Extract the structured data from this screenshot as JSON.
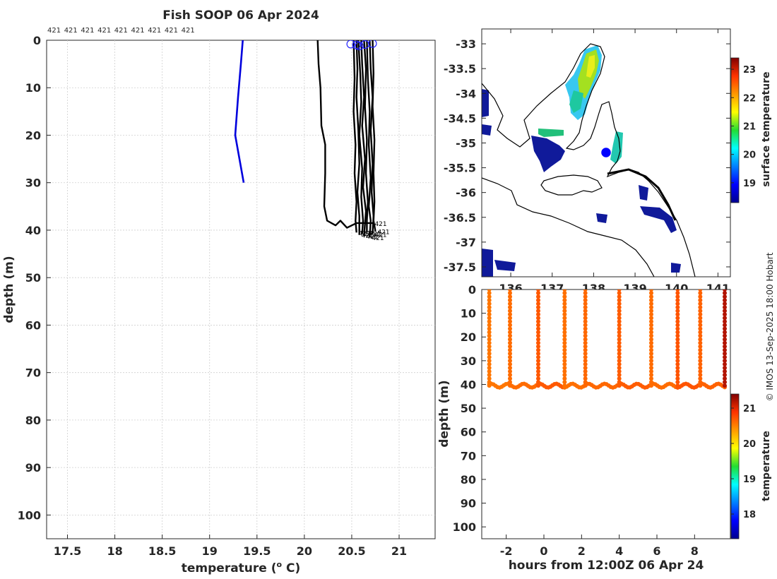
{
  "title": "Fish SOOP 06 Apr 2024",
  "copyright": "© IMOS 13-Sep-2025 18:00 Hobart",
  "chart_data": [
    {
      "type": "line",
      "name": "profile-plot",
      "xlabel_main": "temperature (",
      "xlabel_sup": "o",
      "xlabel_end": " C)",
      "ylabel": "depth (m)",
      "xlim": [
        17.28,
        21.38
      ],
      "ylim": [
        0,
        105
      ],
      "y_reversed": true,
      "grid": true,
      "xticks": [
        17.5,
        18,
        18.5,
        19,
        19.5,
        20,
        20.5,
        21
      ],
      "xtick_labels": [
        "17.5",
        "18",
        "18.5",
        "19",
        "19.5",
        "20",
        "20.5",
        "21"
      ],
      "yticks": [
        0,
        10,
        20,
        30,
        40,
        50,
        60,
        70,
        80,
        90,
        100
      ],
      "ytick_labels": [
        "0",
        "10",
        "20",
        "30",
        "40",
        "50",
        "60",
        "70",
        "80",
        "90",
        "100"
      ],
      "top_labels": [
        "421",
        "421",
        "421",
        "421",
        "421",
        "421",
        "421",
        "421",
        "421"
      ],
      "end_label": "421",
      "series": [
        {
          "name": "reference",
          "color": "#0000dd",
          "x": [
            19.35,
            19.33,
            19.3,
            19.27,
            19.36
          ],
          "y": [
            0,
            5,
            12,
            20,
            30
          ]
        },
        {
          "name": "p1",
          "color": "#000000",
          "x": [
            20.14,
            20.15,
            20.17,
            20.18,
            20.22,
            20.22,
            20.21,
            20.24,
            20.33,
            20.38,
            20.45,
            20.55,
            20.72
          ],
          "y": [
            0,
            5,
            10,
            18,
            22,
            28,
            35,
            38,
            39,
            38,
            39.5,
            38.5,
            38.5
          ]
        },
        {
          "name": "p2",
          "color": "#000000",
          "x": [
            20.52,
            20.53,
            20.52,
            20.54,
            20.53,
            20.55,
            20.54,
            20.55
          ],
          "y": [
            0,
            8,
            15,
            22,
            28,
            34,
            38,
            40.5
          ]
        },
        {
          "name": "p3",
          "color": "#000000",
          "x": [
            20.55,
            20.56,
            20.55,
            20.57,
            20.58,
            20.56,
            20.58,
            20.58
          ],
          "y": [
            0,
            6,
            12,
            19,
            26,
            32,
            37,
            41
          ]
        },
        {
          "name": "p4",
          "color": "#000000",
          "x": [
            20.57,
            20.59,
            20.6,
            20.58,
            20.61,
            20.6,
            20.62,
            20.61
          ],
          "y": [
            0,
            7,
            13,
            20,
            27,
            33,
            38,
            40.8
          ]
        },
        {
          "name": "p5",
          "color": "#000000",
          "x": [
            20.6,
            20.61,
            20.63,
            20.61,
            20.64,
            20.62,
            20.65,
            20.63
          ],
          "y": [
            0,
            5,
            12,
            18,
            25,
            31,
            36,
            41.2
          ]
        },
        {
          "name": "p6",
          "color": "#000000",
          "x": [
            20.63,
            20.65,
            20.64,
            20.66,
            20.65,
            20.67,
            20.66,
            20.66
          ],
          "y": [
            0,
            6,
            14,
            21,
            28,
            34,
            38,
            40.5
          ]
        },
        {
          "name": "p7",
          "color": "#000000",
          "x": [
            20.66,
            20.67,
            20.69,
            20.68,
            20.7,
            20.68,
            20.7,
            20.69
          ],
          "y": [
            0,
            8,
            15,
            22,
            29,
            35,
            38,
            41.5
          ]
        },
        {
          "name": "p8",
          "color": "#000000",
          "x": [
            20.69,
            20.7,
            20.72,
            20.7,
            20.72,
            20.71,
            20.73,
            20.72
          ],
          "y": [
            0,
            6,
            12,
            19,
            26,
            32,
            37,
            40.8
          ]
        },
        {
          "name": "p9",
          "color": "#000000",
          "x": [
            20.72,
            20.73,
            20.72,
            20.74,
            20.73,
            20.74,
            20.73,
            20.75
          ],
          "y": [
            0,
            7,
            14,
            21,
            28,
            34,
            38,
            40.2
          ]
        }
      ],
      "start_markers": [
        {
          "x": 20.49,
          "y": 0.8
        },
        {
          "x": 20.55,
          "y": 1.0
        },
        {
          "x": 20.58,
          "y": 1.2
        },
        {
          "x": 20.64,
          "y": 0.9
        },
        {
          "x": 20.72,
          "y": 0.7
        }
      ]
    },
    {
      "type": "heatmap",
      "name": "sst-map",
      "colorbar_label": "surface temperature",
      "xlim": [
        135.3,
        141.3
      ],
      "ylim": [
        -37.7,
        -32.7
      ],
      "xticks": [
        136,
        137,
        138,
        139,
        140,
        141
      ],
      "xtick_labels": [
        "136",
        "137",
        "138",
        "139",
        "140",
        "141"
      ],
      "yticks": [
        -33,
        -33.5,
        -34,
        -34.5,
        -35,
        -35.5,
        -36,
        -36.5,
        -37,
        -37.5
      ],
      "ytick_labels": [
        "-33",
        "-33.5",
        "-34",
        "-34.5",
        "-35",
        "-35.5",
        "-36",
        "-36.5",
        "-37",
        "-37.5"
      ],
      "clim": [
        18.3,
        23.4
      ],
      "colorbar_ticks": [
        19,
        20,
        21,
        22,
        23
      ],
      "colorbar_tick_labels": [
        "19",
        "20",
        "21",
        "22",
        "23"
      ],
      "track_point": {
        "lon": 138.1,
        "lat": -35.2
      }
    },
    {
      "type": "scatter",
      "name": "time-depth-plot",
      "xlabel": "hours from 12:00Z 06 Apr 24",
      "ylabel": "depth (m)",
      "colorbar_label": "temperature",
      "xlim": [
        -3.3,
        9.9
      ],
      "ylim": [
        0,
        105
      ],
      "y_reversed": true,
      "xticks": [
        -2,
        0,
        2,
        4,
        6,
        8
      ],
      "xtick_labels": [
        "-2",
        "0",
        "2",
        "4",
        "6",
        "8"
      ],
      "yticks": [
        0,
        10,
        20,
        30,
        40,
        50,
        60,
        70,
        80,
        90,
        100
      ],
      "ytick_labels": [
        "0",
        "10",
        "20",
        "30",
        "40",
        "50",
        "60",
        "70",
        "80",
        "90",
        "100"
      ],
      "clim": [
        17.3,
        21.4
      ],
      "colorbar_ticks": [
        18,
        19,
        20,
        21
      ],
      "colorbar_tick_labels": [
        "18",
        "19",
        "20",
        "21"
      ],
      "casts": [
        {
          "t": -2.9,
          "temp": 20.55
        },
        {
          "t": -1.8,
          "temp": 20.6
        },
        {
          "t": -0.3,
          "temp": 20.7
        },
        {
          "t": 1.1,
          "temp": 20.58
        },
        {
          "t": 2.2,
          "temp": 20.62
        },
        {
          "t": 4.0,
          "temp": 20.68
        },
        {
          "t": 5.7,
          "temp": 20.6
        },
        {
          "t": 7.1,
          "temp": 20.72
        },
        {
          "t": 8.3,
          "temp": 20.65
        },
        {
          "t": 9.6,
          "temp": 21.2
        }
      ],
      "bottom_depth": 40.5
    }
  ]
}
